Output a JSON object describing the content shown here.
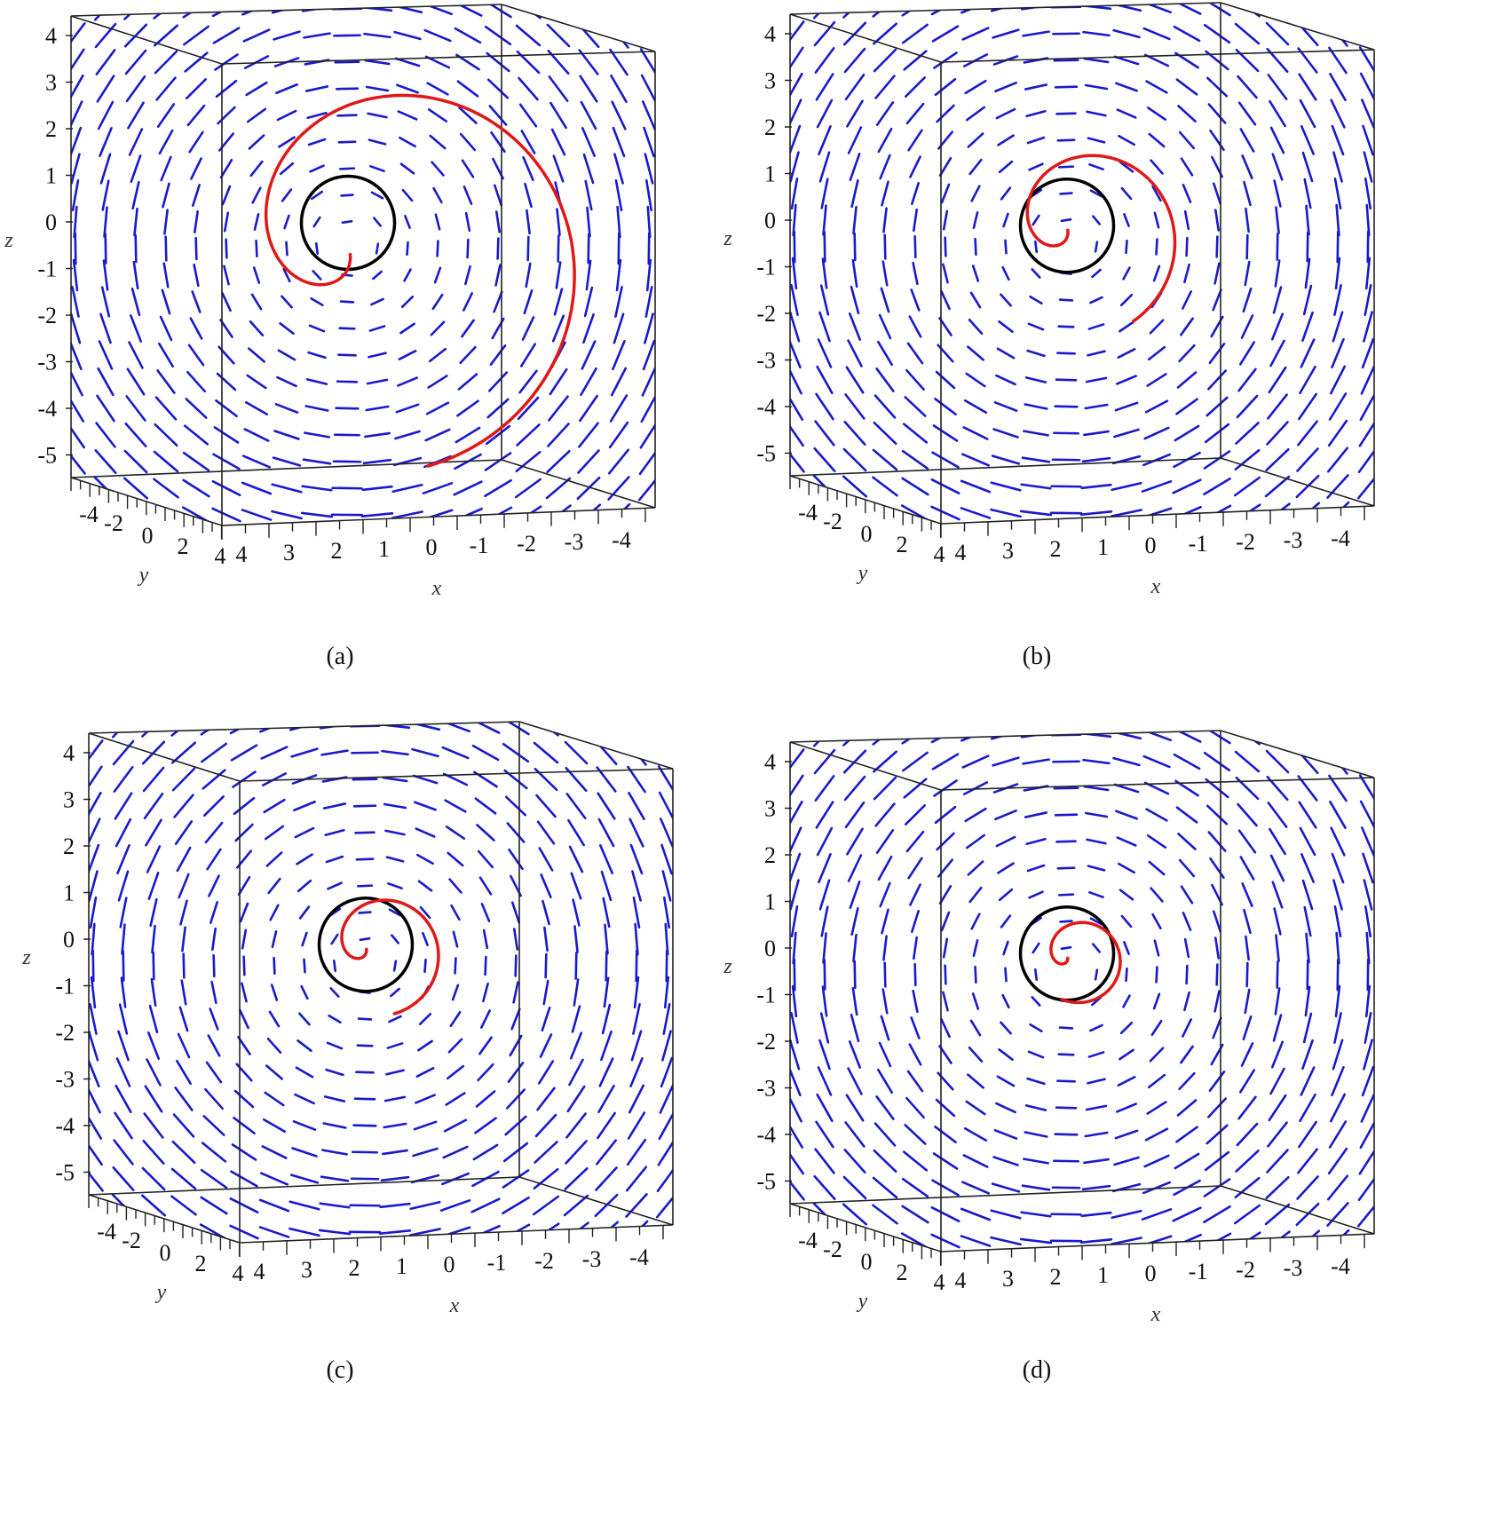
{
  "chart_data": [
    {
      "type": "vector-field-3d",
      "caption": "(a)",
      "axes": {
        "xlabel": "x",
        "ylabel": "y",
        "zlabel": "z",
        "x_ticks": [
          "4",
          "3",
          "2",
          "1",
          "0",
          "-1",
          "-2",
          "-3",
          "-4"
        ],
        "y_ticks": [
          "-4",
          "-2",
          "0",
          "2",
          "4"
        ],
        "z_ticks": [
          "4",
          "3",
          "2",
          "1",
          "0",
          "-1",
          "-2",
          "-3",
          "-4",
          "-5"
        ]
      },
      "field_color": "#1a1acc",
      "circle": {
        "color": "#000000",
        "center_z": -0.4,
        "radius": 1.0
      },
      "trajectory": {
        "color": "#e01818",
        "start_radius": 0.3,
        "end_radius": 4.9,
        "turns": 1.0
      }
    },
    {
      "type": "vector-field-3d",
      "caption": "(b)",
      "axes": {
        "xlabel": "x",
        "ylabel": "y",
        "zlabel": "z",
        "x_ticks": [
          "4",
          "3",
          "2",
          "1",
          "0",
          "-1",
          "-2",
          "-3",
          "-4"
        ],
        "y_ticks": [
          "-4",
          "-2",
          "0",
          "2",
          "4"
        ],
        "z_ticks": [
          "4",
          "3",
          "2",
          "1",
          "0",
          "-1",
          "-2",
          "-3",
          "-4",
          "-5"
        ]
      },
      "field_color": "#1a1acc",
      "circle": {
        "color": "#000000",
        "center_z": -0.5,
        "radius": 1.0
      },
      "trajectory": {
        "color": "#e01818",
        "start_radius": 0.1,
        "end_radius": 2.3,
        "turns": 0.95
      }
    },
    {
      "type": "vector-field-3d",
      "caption": "(c)",
      "axes": {
        "xlabel": "x",
        "ylabel": "y",
        "zlabel": "z",
        "x_ticks": [
          "4",
          "3",
          "2",
          "1",
          "0",
          "-1",
          "-2",
          "-3",
          "-4"
        ],
        "y_ticks": [
          "-4",
          "-2",
          "0",
          "2",
          "4"
        ],
        "z_ticks": [
          "4",
          "3",
          "2",
          "1",
          "0",
          "-1",
          "-2",
          "-3",
          "-4",
          "-5"
        ]
      },
      "field_color": "#1a1acc",
      "circle": {
        "color": "#000000",
        "center_z": -0.5,
        "radius": 1.0
      },
      "trajectory": {
        "color": "#e01818",
        "start_radius": 0.1,
        "end_radius": 1.5,
        "turns": 1.0
      }
    },
    {
      "type": "vector-field-3d",
      "caption": "(d)",
      "axes": {
        "xlabel": "x",
        "ylabel": "y",
        "zlabel": "z",
        "x_ticks": [
          "4",
          "3",
          "2",
          "1",
          "0",
          "-1",
          "-2",
          "-3",
          "-4"
        ],
        "y_ticks": [
          "-4",
          "-2",
          "0",
          "2",
          "4"
        ],
        "z_ticks": [
          "4",
          "3",
          "2",
          "1",
          "0",
          "-1",
          "-2",
          "-3",
          "-4",
          "-5"
        ]
      },
      "field_color": "#1a1acc",
      "circle": {
        "color": "#000000",
        "center_z": -0.5,
        "radius": 1.0
      },
      "trajectory": {
        "color": "#e01818",
        "start_radius": 0.1,
        "end_radius": 1.1,
        "turns": 1.1
      }
    }
  ]
}
